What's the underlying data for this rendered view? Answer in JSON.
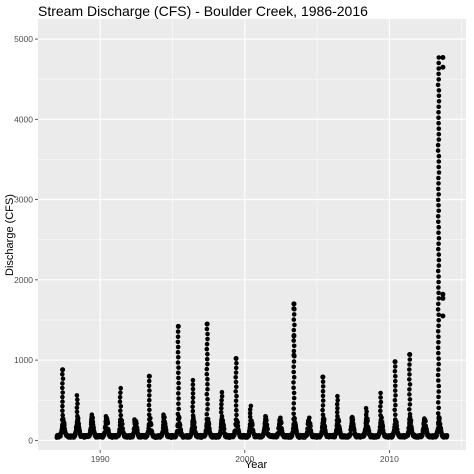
{
  "chart_data": {
    "type": "scatter",
    "title": "Stream Discharge (CFS) - Boulder Creek, 1986-2016",
    "xlabel": "Year",
    "ylabel": "Discharge (CFS)",
    "xlim": [
      1985.7,
      2015.3
    ],
    "ylim": [
      -120,
      5250
    ],
    "x_ticks": [
      1990,
      2000,
      2010
    ],
    "x_tick_labels": [
      "1990",
      "2000",
      "2010"
    ],
    "y_ticks": [
      0,
      1000,
      2000,
      3000,
      4000,
      5000
    ],
    "y_tick_labels": [
      "0",
      "1000",
      "2000",
      "3000",
      "4000",
      "5000"
    ],
    "grid": true,
    "legend": "none",
    "colors": {
      "panel": "#ebebeb",
      "grid_major": "#ffffff",
      "point": "#000000"
    },
    "x_range": [
      1986.8,
      2013.9
    ],
    "annual_peaks": [
      {
        "x": 1987.4,
        "y": 880
      },
      {
        "x": 1988.4,
        "y": 560
      },
      {
        "x": 1989.4,
        "y": 320
      },
      {
        "x": 1990.4,
        "y": 300
      },
      {
        "x": 1991.4,
        "y": 650
      },
      {
        "x": 1992.4,
        "y": 260
      },
      {
        "x": 1993.4,
        "y": 800
      },
      {
        "x": 1994.4,
        "y": 320
      },
      {
        "x": 1995.4,
        "y": 1420
      },
      {
        "x": 1996.4,
        "y": 750
      },
      {
        "x": 1997.4,
        "y": 1450
      },
      {
        "x": 1998.4,
        "y": 600
      },
      {
        "x": 1999.4,
        "y": 1020
      },
      {
        "x": 2000.4,
        "y": 430
      },
      {
        "x": 2001.4,
        "y": 300
      },
      {
        "x": 2002.4,
        "y": 140
      },
      {
        "x": 2003.4,
        "y": 1700
      },
      {
        "x": 2004.4,
        "y": 250
      },
      {
        "x": 2005.4,
        "y": 790
      },
      {
        "x": 2006.4,
        "y": 550
      },
      {
        "x": 2007.4,
        "y": 280
      },
      {
        "x": 2008.4,
        "y": 400
      },
      {
        "x": 2009.4,
        "y": 590
      },
      {
        "x": 2010.4,
        "y": 980
      },
      {
        "x": 2011.4,
        "y": 1070
      },
      {
        "x": 2012.4,
        "y": 250
      },
      {
        "x": 2013.4,
        "y": 4770
      }
    ],
    "notable_points": [
      {
        "x": 2013.7,
        "y": 4770
      },
      {
        "x": 2013.7,
        "y": 4650
      },
      {
        "x": 2013.7,
        "y": 1820
      },
      {
        "x": 2013.7,
        "y": 1770
      },
      {
        "x": 2013.7,
        "y": 1550
      },
      {
        "x": 2003.4,
        "y": 1700
      },
      {
        "x": 2003.4,
        "y": 1640
      },
      {
        "x": 2003.4,
        "y": 1300
      },
      {
        "x": 2003.4,
        "y": 1060
      },
      {
        "x": 1997.4,
        "y": 1450
      },
      {
        "x": 1995.4,
        "y": 1420
      },
      {
        "x": 2011.4,
        "y": 1070
      },
      {
        "x": 1999.4,
        "y": 1020
      },
      {
        "x": 2010.4,
        "y": 980
      },
      {
        "x": 1987.4,
        "y": 880
      },
      {
        "x": 1993.4,
        "y": 800
      },
      {
        "x": 2005.4,
        "y": 790
      }
    ]
  }
}
